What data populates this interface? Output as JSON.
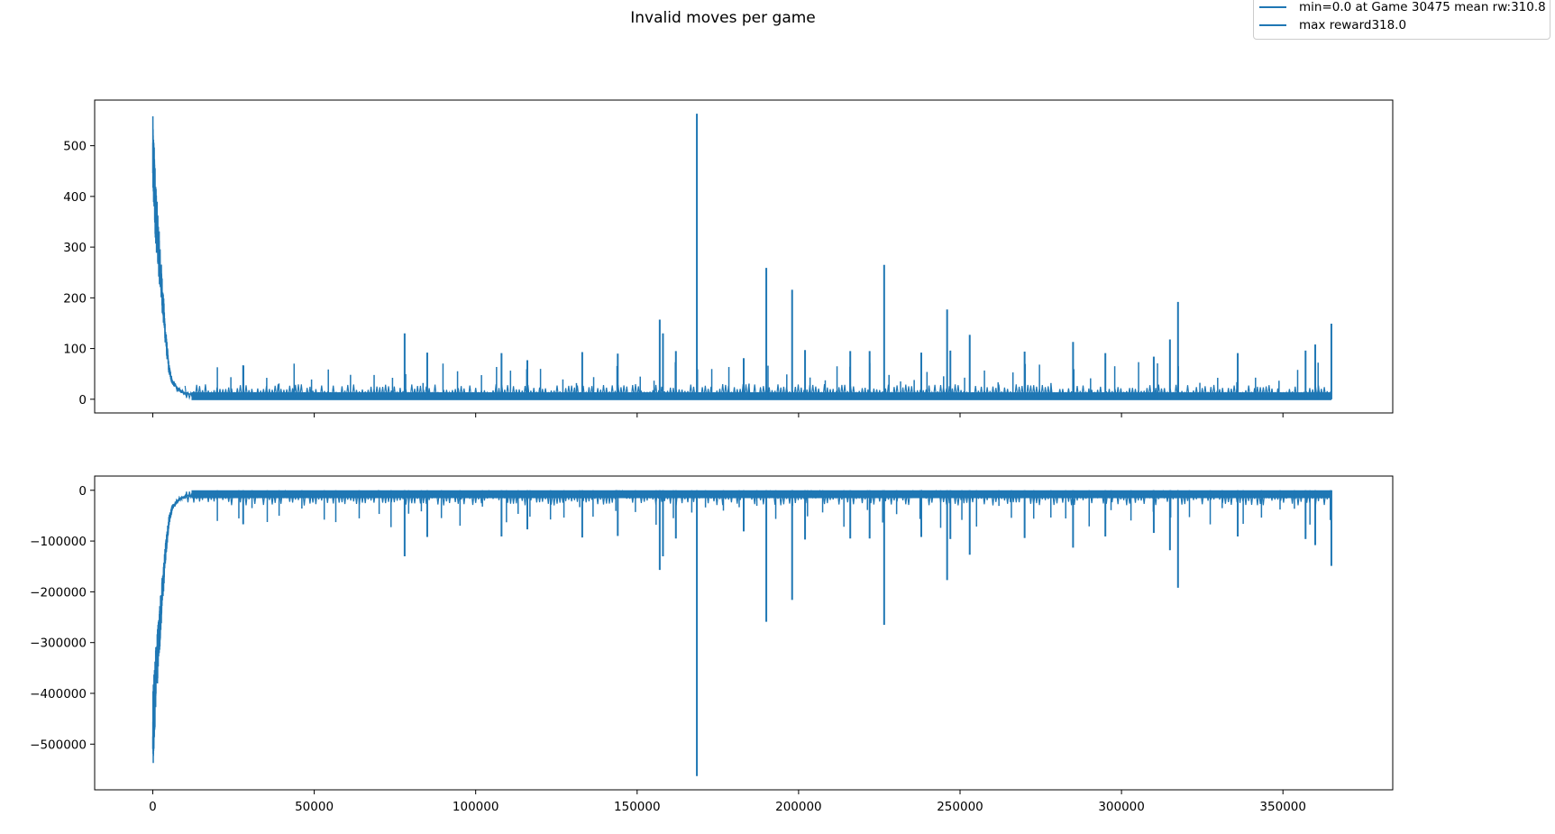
{
  "title": "Invalid moves per game",
  "colors": {
    "series": "#1f77b4",
    "axis": "#000000",
    "background": "#ffffff"
  },
  "legend": {
    "placement": "top-right",
    "entries": [
      {
        "label": "min=0.0 at Game 30475 mean rw:310.8"
      },
      {
        "label": "max reward318.0"
      }
    ]
  },
  "chart_data": [
    {
      "type": "line",
      "title": "",
      "xlabel": "",
      "ylabel": "",
      "xlim": [
        -18000,
        384000
      ],
      "ylim": [
        -27,
        590
      ],
      "xticks": [
        0,
        50000,
        100000,
        150000,
        200000,
        250000,
        300000,
        350000
      ],
      "xtick_labels_visible": false,
      "yticks": [
        0,
        100,
        200,
        300,
        400,
        500
      ],
      "ytick_labels": [
        "0",
        "100",
        "200",
        "300",
        "400",
        "500"
      ],
      "grid": false,
      "series": [
        {
          "n_points": 365000,
          "x_range": [
            0,
            365000
          ],
          "initial_decay": [
            [
              0,
              480
            ],
            [
              500,
              420
            ],
            [
              1000,
              360
            ],
            [
              2000,
              280
            ],
            [
              3000,
              200
            ],
            [
              4000,
              120
            ],
            [
              5000,
              60
            ],
            [
              6000,
              35
            ],
            [
              8000,
              18
            ],
            [
              10000,
              12
            ],
            [
              20000,
              10
            ]
          ],
          "baseline_band": [
            0,
            25
          ],
          "spikes": [
            [
              28000,
              67
            ],
            [
              78000,
              130
            ],
            [
              85000,
              92
            ],
            [
              108000,
              91
            ],
            [
              116000,
              77
            ],
            [
              133000,
              93
            ],
            [
              144000,
              90
            ],
            [
              157000,
              157
            ],
            [
              158000,
              130
            ],
            [
              162000,
              95
            ],
            [
              168500,
              563
            ],
            [
              183000,
              81
            ],
            [
              190000,
              259
            ],
            [
              198000,
              216
            ],
            [
              202000,
              97
            ],
            [
              216000,
              95
            ],
            [
              222000,
              95
            ],
            [
              226500,
              265
            ],
            [
              238000,
              92
            ],
            [
              246000,
              177
            ],
            [
              247000,
              96
            ],
            [
              253000,
              127
            ],
            [
              270000,
              94
            ],
            [
              285000,
              113
            ],
            [
              295000,
              91
            ],
            [
              310000,
              84
            ],
            [
              315000,
              118
            ],
            [
              317500,
              192
            ],
            [
              336000,
              91
            ],
            [
              357000,
              96
            ],
            [
              360000,
              108
            ],
            [
              365000,
              149
            ]
          ]
        }
      ]
    },
    {
      "type": "line",
      "title": "",
      "xlabel": "",
      "ylabel": "",
      "xlim": [
        -18000,
        384000
      ],
      "ylim": [
        -590000,
        28000
      ],
      "xticks": [
        0,
        50000,
        100000,
        150000,
        200000,
        250000,
        300000,
        350000
      ],
      "xtick_labels": [
        "0",
        "50000",
        "100000",
        "150000",
        "200000",
        "250000",
        "300000",
        "350000"
      ],
      "yticks": [
        0,
        -100000,
        -200000,
        -300000,
        -400000,
        -500000
      ],
      "ytick_labels": [
        "0",
        "−100000",
        "−200000",
        "−300000",
        "−400000",
        "−500000"
      ],
      "grid": false,
      "series": [
        {
          "n_points": 365000,
          "x_range": [
            0,
            365000
          ],
          "initial_decay": [
            [
              0,
              -480000
            ],
            [
              500,
              -420000
            ],
            [
              1000,
              -360000
            ],
            [
              2000,
              -280000
            ],
            [
              3000,
              -200000
            ],
            [
              4000,
              -120000
            ],
            [
              5000,
              -60000
            ],
            [
              6000,
              -35000
            ],
            [
              8000,
              -18000
            ],
            [
              10000,
              -12000
            ],
            [
              20000,
              -10000
            ]
          ],
          "baseline_band": [
            -25000,
            0
          ],
          "spikes": [
            [
              28000,
              -67000
            ],
            [
              78000,
              -130000
            ],
            [
              85000,
              -92000
            ],
            [
              108000,
              -91000
            ],
            [
              116000,
              -77000
            ],
            [
              133000,
              -93000
            ],
            [
              144000,
              -90000
            ],
            [
              157000,
              -157000
            ],
            [
              158000,
              -130000
            ],
            [
              162000,
              -95000
            ],
            [
              168500,
              -563000
            ],
            [
              183000,
              -81000
            ],
            [
              190000,
              -259000
            ],
            [
              198000,
              -216000
            ],
            [
              202000,
              -97000
            ],
            [
              216000,
              -95000
            ],
            [
              222000,
              -95000
            ],
            [
              226500,
              -265000
            ],
            [
              238000,
              -92000
            ],
            [
              246000,
              -177000
            ],
            [
              247000,
              -96000
            ],
            [
              253000,
              -127000
            ],
            [
              270000,
              -94000
            ],
            [
              285000,
              -113000
            ],
            [
              295000,
              -91000
            ],
            [
              310000,
              -84000
            ],
            [
              315000,
              -118000
            ],
            [
              317500,
              -192000
            ],
            [
              336000,
              -91000
            ],
            [
              357000,
              -96000
            ],
            [
              360000,
              -108000
            ],
            [
              365000,
              -149000
            ]
          ]
        }
      ]
    }
  ]
}
